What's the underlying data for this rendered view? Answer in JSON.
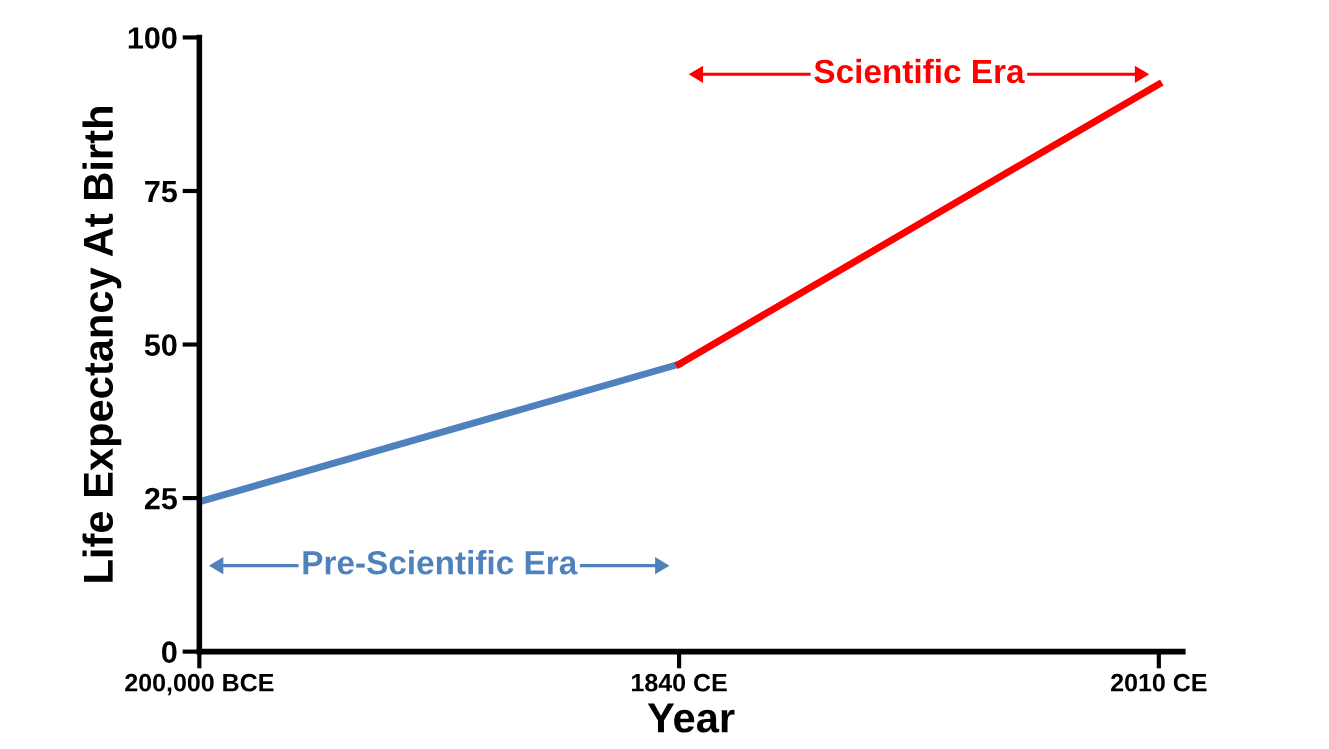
{
  "chart_data": {
    "type": "line",
    "xlabel": "Year",
    "ylabel": "Life Expectancy At Birth",
    "categories": [
      "200,000 BCE",
      "1840 CE",
      "2010 CE"
    ],
    "series": [
      {
        "color": "#4f81bd",
        "values": [
          24.4,
          46.8,
          null
        ]
      },
      {
        "color": "#ff0000",
        "values": [
          null,
          46.8,
          92.4
        ]
      }
    ],
    "ylim": [
      0,
      100
    ],
    "yticks": [
      0,
      25,
      50,
      75,
      100
    ],
    "grid": false,
    "legend": false,
    "marker": "none",
    "line_style": "solid",
    "annotations": [
      "Pre-Scientific Era",
      "Scientific Era"
    ]
  }
}
